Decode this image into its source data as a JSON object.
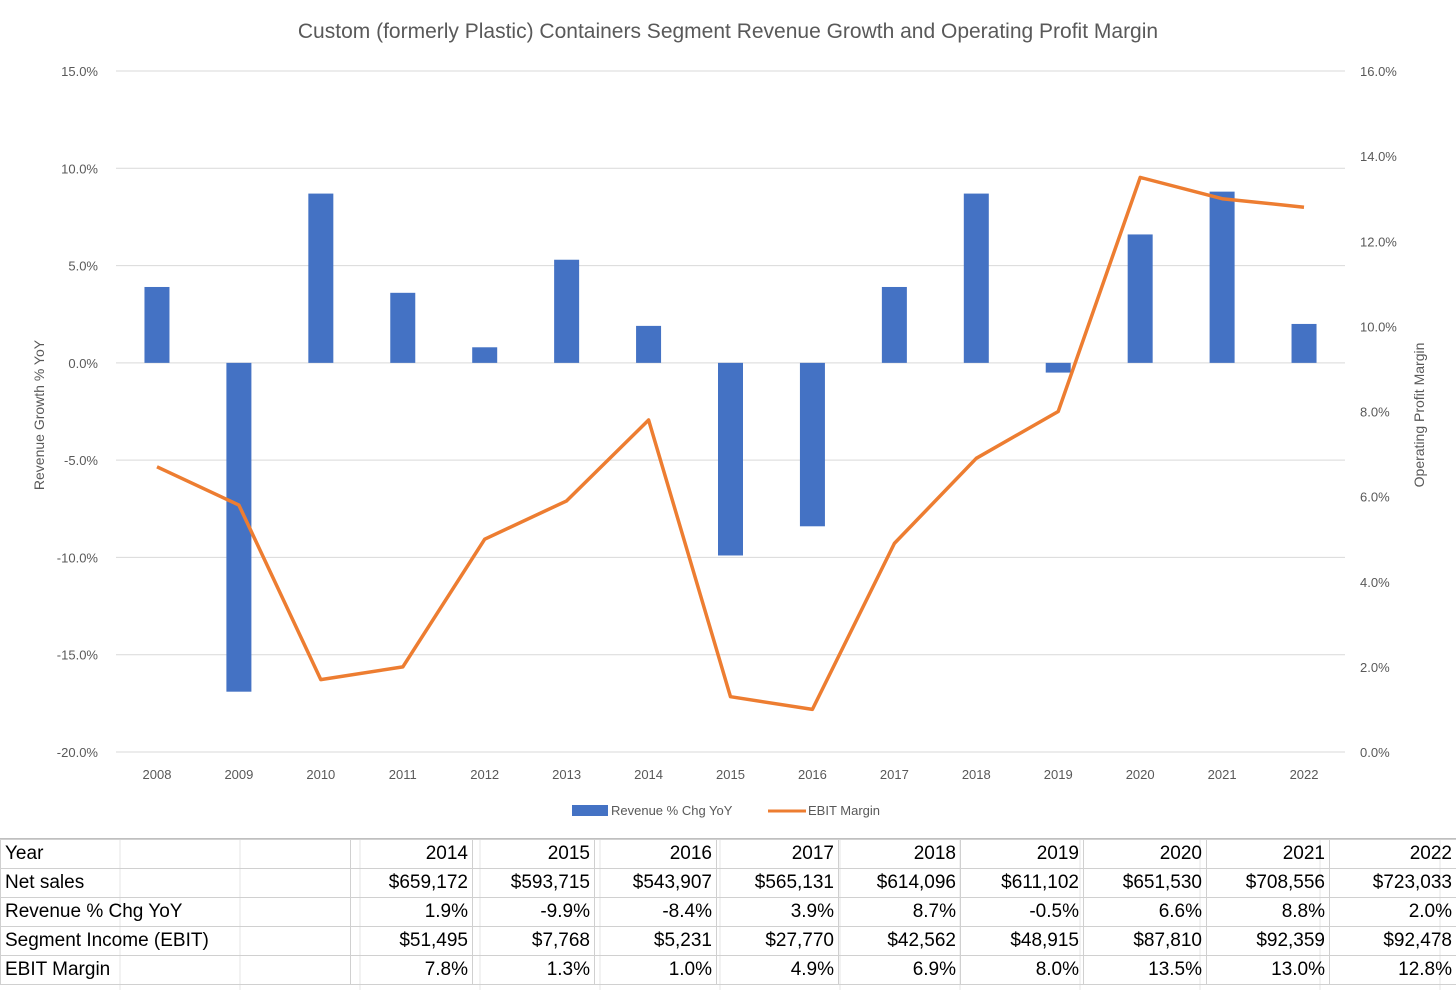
{
  "chart_data": {
    "type": "bar",
    "title": "Custom (formerly Plastic) Containers Segment Revenue Growth and Operating Profit Margin",
    "categories": [
      "2008",
      "2009",
      "2010",
      "2011",
      "2012",
      "2013",
      "2014",
      "2015",
      "2016",
      "2017",
      "2018",
      "2019",
      "2020",
      "2021",
      "2022"
    ],
    "series": [
      {
        "name": "Revenue % Chg YoY",
        "type": "bar",
        "axis": "left",
        "color": "#4472C4",
        "values": [
          3.9,
          -16.9,
          8.7,
          3.6,
          0.8,
          5.3,
          1.9,
          -9.9,
          -8.4,
          3.9,
          8.7,
          -0.5,
          6.6,
          8.8,
          2.0
        ]
      },
      {
        "name": "EBIT Margin",
        "type": "line",
        "axis": "right",
        "color": "#ED7D31",
        "values": [
          6.7,
          5.8,
          1.7,
          2.0,
          5.0,
          5.9,
          7.8,
          1.3,
          1.0,
          4.9,
          6.9,
          8.0,
          13.5,
          13.0,
          12.8
        ]
      }
    ],
    "ylabel": "Revenue Growth % YoY",
    "y2label": "Operating Profit Margin",
    "ylim": [
      -20,
      15
    ],
    "y2lim": [
      0,
      16
    ],
    "yticks": [
      "15.0%",
      "10.0%",
      "5.0%",
      "0.0%",
      "-5.0%",
      "-10.0%",
      "-15.0%",
      "-20.0%"
    ],
    "y2ticks": [
      "16.0%",
      "14.0%",
      "12.0%",
      "10.0%",
      "8.0%",
      "6.0%",
      "4.0%",
      "2.0%",
      "0.0%"
    ],
    "grid": true,
    "legend_position": "bottom"
  },
  "table": {
    "header": [
      "Year",
      "2014",
      "2015",
      "2016",
      "2017",
      "2018",
      "2019",
      "2020",
      "2021",
      "2022"
    ],
    "rows": [
      [
        "Net sales",
        "$659,172",
        "$593,715",
        "$543,907",
        "$565,131",
        "$614,096",
        "$611,102",
        "$651,530",
        "$708,556",
        "$723,033"
      ],
      [
        "Revenue % Chg YoY",
        "1.9%",
        "-9.9%",
        "-8.4%",
        "3.9%",
        "8.7%",
        "-0.5%",
        "6.6%",
        "8.8%",
        "2.0%"
      ],
      [
        "Segment Income (EBIT)",
        "$51,495",
        "$7,768",
        "$5,231",
        "$27,770",
        "$42,562",
        "$48,915",
        "$87,810",
        "$92,359",
        "$92,478"
      ],
      [
        "EBIT Margin",
        "7.8%",
        "1.3%",
        "1.0%",
        "4.9%",
        "6.9%",
        "8.0%",
        "13.5%",
        "13.0%",
        "12.8%"
      ]
    ]
  }
}
